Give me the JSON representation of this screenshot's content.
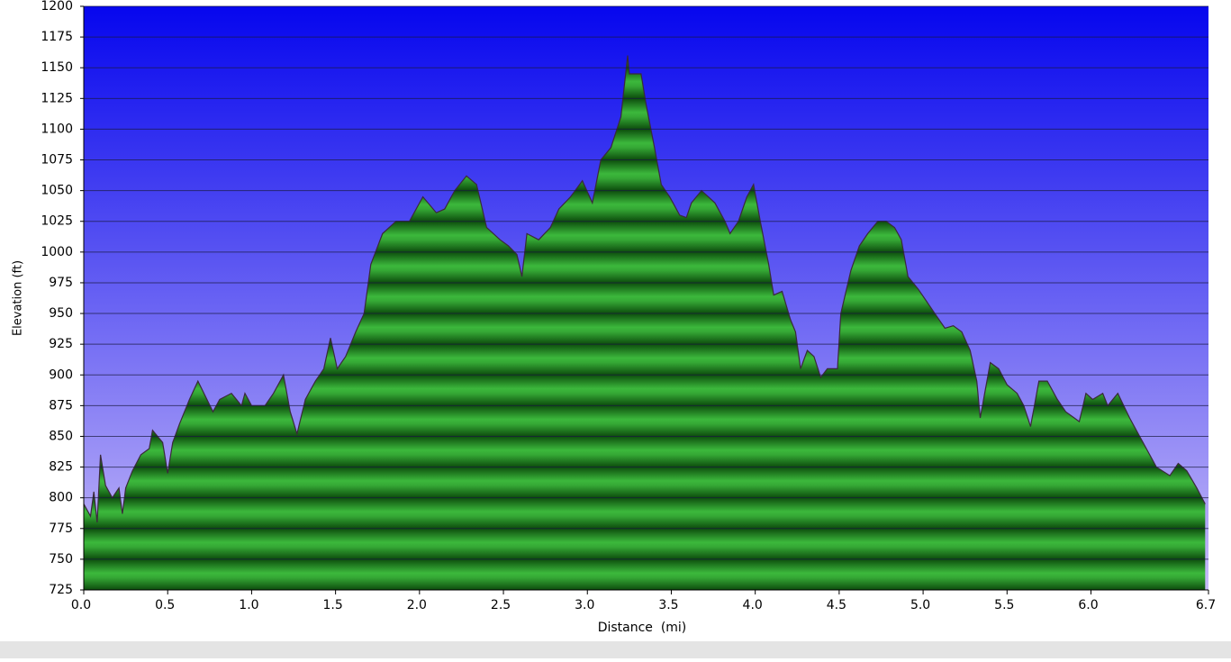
{
  "chart_data": {
    "type": "area",
    "xlabel": "Distance  (mi)",
    "ylabel": "Elevation (ft)",
    "x": [
      0,
      0.04,
      0.06,
      0.08,
      0.1,
      0.13,
      0.17,
      0.21,
      0.23,
      0.25,
      0.29,
      0.34,
      0.39,
      0.41,
      0.47,
      0.5,
      0.53,
      0.57,
      0.63,
      0.68,
      0.77,
      0.81,
      0.88,
      0.94,
      0.96,
      1.0,
      1.08,
      1.13,
      1.19,
      1.23,
      1.27,
      1.32,
      1.38,
      1.43,
      1.47,
      1.51,
      1.56,
      1.62,
      1.67,
      1.71,
      1.78,
      1.86,
      1.94,
      2.02,
      2.1,
      2.15,
      2.21,
      2.28,
      2.34,
      2.4,
      2.48,
      2.53,
      2.58,
      2.61,
      2.64,
      2.71,
      2.78,
      2.83,
      2.9,
      2.97,
      3.03,
      3.08,
      3.14,
      3.2,
      3.24,
      3.25,
      3.32,
      3.35,
      3.4,
      3.44,
      3.49,
      3.55,
      3.59,
      3.62,
      3.68,
      3.76,
      3.82,
      3.85,
      3.9,
      3.95,
      3.99,
      4.03,
      4.08,
      4.11,
      4.16,
      4.21,
      4.24,
      4.27,
      4.31,
      4.35,
      4.39,
      4.43,
      4.49,
      4.51,
      4.57,
      4.62,
      4.67,
      4.73,
      4.78,
      4.83,
      4.87,
      4.91,
      4.97,
      5.02,
      5.07,
      5.13,
      5.18,
      5.23,
      5.28,
      5.32,
      5.34,
      5.4,
      5.45,
      5.5,
      5.56,
      5.6,
      5.64,
      5.69,
      5.74,
      5.8,
      5.85,
      5.9,
      5.93,
      5.97,
      6.01,
      6.07,
      6.1,
      6.16,
      6.23,
      6.31,
      6.39,
      6.47,
      6.52,
      6.57,
      6.63,
      6.68
    ],
    "values": [
      795,
      785,
      805,
      780,
      835,
      810,
      800,
      808,
      787,
      808,
      822,
      835,
      840,
      855,
      845,
      820,
      845,
      860,
      880,
      895,
      870,
      880,
      885,
      875,
      885,
      875,
      875,
      885,
      900,
      870,
      852,
      880,
      895,
      905,
      930,
      905,
      915,
      935,
      950,
      990,
      1015,
      1025,
      1025,
      1045,
      1032,
      1035,
      1050,
      1062,
      1055,
      1020,
      1010,
      1005,
      998,
      980,
      1015,
      1010,
      1020,
      1035,
      1045,
      1058,
      1040,
      1075,
      1085,
      1110,
      1160,
      1145,
      1145,
      1120,
      1085,
      1055,
      1045,
      1030,
      1028,
      1040,
      1050,
      1040,
      1025,
      1015,
      1025,
      1045,
      1055,
      1025,
      990,
      965,
      968,
      945,
      935,
      905,
      920,
      915,
      898,
      905,
      905,
      950,
      985,
      1005,
      1015,
      1025,
      1025,
      1020,
      1010,
      980,
      970,
      960,
      950,
      938,
      940,
      935,
      920,
      895,
      865,
      910,
      905,
      892,
      885,
      875,
      858,
      895,
      895,
      880,
      870,
      865,
      862,
      885,
      880,
      885,
      875,
      885,
      865,
      845,
      825,
      818,
      828,
      822,
      808,
      795
    ],
    "color": "#2a9a2a",
    "xlim": [
      0,
      6.7
    ],
    "ylim": [
      725,
      1200
    ],
    "xticks": [
      {
        "value": 0,
        "label": "0.0"
      },
      0.5,
      {
        "value": 1,
        "label": "1.0"
      },
      1.5,
      {
        "value": 2,
        "label": "2.0"
      },
      2.5,
      {
        "value": 3,
        "label": "3.0"
      },
      3.5,
      {
        "value": 4,
        "label": "4.0"
      },
      4.5,
      {
        "value": 5,
        "label": "5.0"
      },
      5.5,
      {
        "value": 6,
        "label": "6.0"
      },
      6.7
    ],
    "yticks": [
      725,
      750,
      775,
      800,
      825,
      850,
      875,
      900,
      925,
      950,
      975,
      1000,
      1025,
      1050,
      1075,
      1100,
      1125,
      1150,
      1175,
      1200
    ],
    "grid": true
  }
}
